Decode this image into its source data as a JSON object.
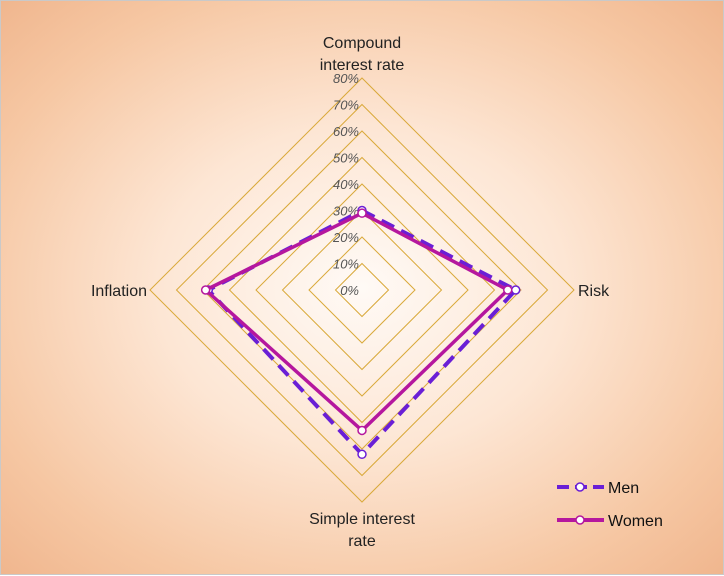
{
  "chart_data": {
    "type": "radar",
    "categories": [
      "Compound interest rate",
      "Risk",
      "Simple interest rate",
      "Inflation"
    ],
    "category_lines": [
      [
        "Compound",
        "interest rate"
      ],
      [
        "Risk"
      ],
      [
        "Simple interest",
        "rate"
      ],
      [
        "Inflation"
      ]
    ],
    "rlim": [
      0,
      0.8
    ],
    "ticks": [
      "0%",
      "10%",
      "20%",
      "30%",
      "40%",
      "50%",
      "60%",
      "70%",
      "80%"
    ],
    "series": [
      {
        "name": "Men",
        "values": [
          0.3,
          0.58,
          0.62,
          0.58
        ],
        "color": "#6a1fd6",
        "dash": true
      },
      {
        "name": "Women",
        "values": [
          0.29,
          0.55,
          0.53,
          0.59
        ],
        "color": "#b5179e",
        "dash": false
      }
    ],
    "grid_color": "#d9a93a",
    "legend_position": "bottom-right"
  }
}
